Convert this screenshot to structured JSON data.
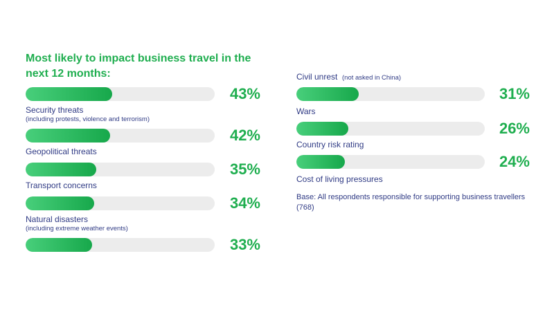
{
  "chart_data": {
    "type": "bar",
    "title": "Most likely to impact business travel in the next 12 months:",
    "unit": "%",
    "xlim": [
      0,
      100
    ],
    "left_column": [
      {
        "label": "",
        "sublabel": "",
        "value": 43,
        "value_label": "43%"
      },
      {
        "label": "Security threats",
        "sublabel": "(including protests, violence and terrorism)",
        "value": 42,
        "value_label": "42%"
      },
      {
        "label": "Geopolitical threats",
        "sublabel": "",
        "value": 35,
        "value_label": "35%"
      },
      {
        "label": "Transport concerns",
        "sublabel": "",
        "value": 34,
        "value_label": "34%"
      },
      {
        "label": "Natural disasters",
        "sublabel": "(including extreme weather events)",
        "value": 33,
        "value_label": "33%"
      }
    ],
    "right_column": [
      {
        "label": "Civil unrest",
        "sublabel": "(not asked in China)",
        "value": 31,
        "value_label": "31%"
      },
      {
        "label": "Wars",
        "sublabel": "",
        "value": 26,
        "value_label": "26%"
      },
      {
        "label": "Country risk rating",
        "sublabel": "",
        "value": 24,
        "value_label": "24%"
      },
      {
        "label": "Cost of living pressures",
        "sublabel": "",
        "value": null,
        "value_label": ""
      }
    ],
    "base_note": "Base: All respondents responsible for supporting business travellers (768)",
    "colors": {
      "accent": "#1fae4f",
      "track": "#ececec",
      "label": "#2f3a84"
    }
  }
}
